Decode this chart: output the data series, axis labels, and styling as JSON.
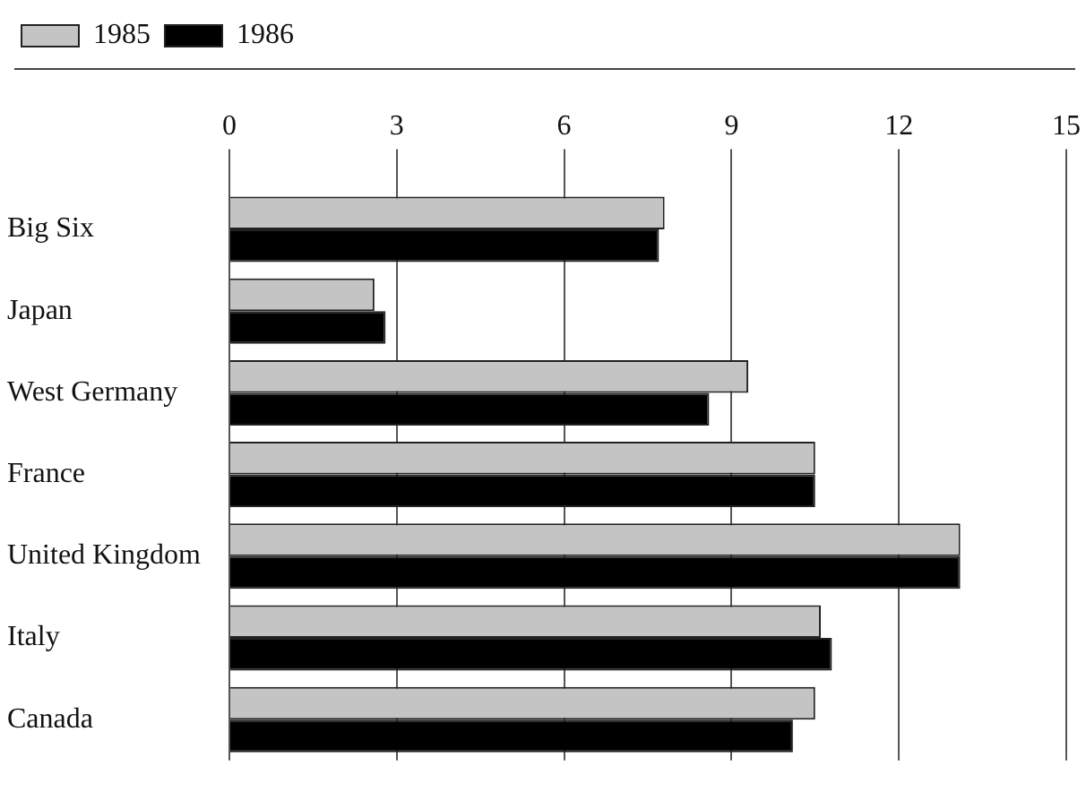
{
  "chart_data": {
    "type": "bar",
    "orientation": "horizontal",
    "categories": [
      "Big Six",
      "Japan",
      "West Germany",
      "France",
      "United Kingdom",
      "Italy",
      "Canada"
    ],
    "series": [
      {
        "name": "1985",
        "color": "#c4c4c4",
        "values": [
          7.8,
          2.6,
          9.3,
          10.5,
          13.1,
          10.6,
          10.5
        ]
      },
      {
        "name": "1986",
        "color": "#000000",
        "values": [
          7.7,
          2.8,
          8.6,
          10.5,
          13.1,
          10.8,
          10.1
        ]
      }
    ],
    "xlim": [
      0,
      15
    ],
    "xticks": [
      0,
      3,
      6,
      9,
      12,
      15
    ],
    "grid": "x",
    "legend": "top left"
  }
}
